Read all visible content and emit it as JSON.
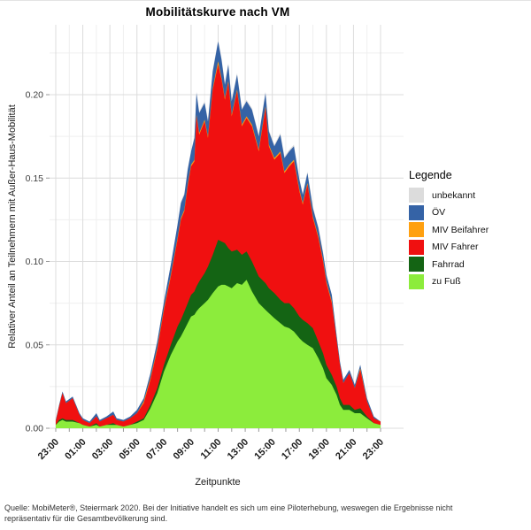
{
  "caption": {
    "text": "Quelle: MobiMeter®, Steiermark 2020. Bei der Initiative handelt es sich um eine Piloterhebung,  weswegen die Ergebnisse nicht repräsentativ für die Gesamtbevölkerung sind."
  },
  "chart_data": {
    "type": "area",
    "stacked": true,
    "title": "Mobilitätskurve nach VM",
    "xlabel": "Zeitpunkte",
    "ylabel": "Relativer Anteil an Teilnehmern mit Außer-Haus-Mobilität",
    "legend_title": "Legende",
    "legend_position": "right",
    "grid": "major+minor",
    "x_unit": "hours since 23:00",
    "x_range": [
      0,
      24
    ],
    "x_tick_hours": [
      0,
      2,
      4,
      6,
      8,
      10,
      12,
      14,
      16,
      18,
      20,
      22,
      24
    ],
    "x_tick_labels": [
      "23:00",
      "01:00",
      "03:00",
      "05:00",
      "07:00",
      "09:00",
      "11:00",
      "13:00",
      "15:00",
      "17:00",
      "19:00",
      "21:00",
      "23:00"
    ],
    "y_ticks": [
      0.0,
      0.05,
      0.1,
      0.15,
      0.2
    ],
    "y_tick_labels": [
      "0.00",
      "0.05",
      "0.10",
      "0.15",
      "0.20"
    ],
    "y_minor_ticks": [
      0.025,
      0.075,
      0.125,
      0.175,
      0.225
    ],
    "ylim": [
      0,
      0.242
    ],
    "x": [
      0,
      0.25,
      0.5,
      0.75,
      1.25,
      1.75,
      2,
      2.5,
      3,
      3.25,
      3.75,
      4.25,
      4.5,
      5,
      5.5,
      6,
      6.5,
      7,
      7.5,
      8,
      8.5,
      9,
      9.25,
      9.5,
      9.75,
      10,
      10.25,
      10.4,
      10.6,
      11,
      11.25,
      11.6,
      12,
      12.25,
      12.5,
      12.75,
      13,
      13.4,
      13.75,
      14.1,
      14.5,
      15,
      15.5,
      15.75,
      16.15,
      16.6,
      16.9,
      17.25,
      17.6,
      18,
      18.25,
      18.6,
      19,
      19.4,
      19.75,
      20,
      20.4,
      20.75,
      21,
      21.25,
      21.7,
      22.1,
      22.5,
      23,
      23.5,
      24
    ],
    "series_order": "bottom to top",
    "series": [
      {
        "name": "zu Fuß",
        "color": "#8CEC3C",
        "values": [
          0.002,
          0.004,
          0.005,
          0.004,
          0.004,
          0.003,
          0.002,
          0.001,
          0.002,
          0.001,
          0.002,
          0.002,
          0.002,
          0.001,
          0.002,
          0.003,
          0.005,
          0.012,
          0.021,
          0.034,
          0.044,
          0.052,
          0.055,
          0.059,
          0.063,
          0.067,
          0.068,
          0.07,
          0.072,
          0.075,
          0.077,
          0.081,
          0.085,
          0.086,
          0.086,
          0.085,
          0.084,
          0.087,
          0.086,
          0.089,
          0.082,
          0.075,
          0.071,
          0.069,
          0.066,
          0.063,
          0.061,
          0.06,
          0.058,
          0.054,
          0.052,
          0.05,
          0.048,
          0.042,
          0.036,
          0.03,
          0.026,
          0.02,
          0.014,
          0.011,
          0.011,
          0.009,
          0.009,
          0.006,
          0.003,
          0.002
        ]
      },
      {
        "name": "Fahrrad",
        "color": "#146414",
        "values": [
          0,
          0.001,
          0.001,
          0.001,
          0.001,
          0,
          0,
          0,
          0.001,
          0,
          0,
          0.001,
          0,
          0,
          0,
          0.001,
          0.001,
          0.002,
          0.003,
          0.004,
          0.006,
          0.009,
          0.01,
          0.011,
          0.012,
          0.013,
          0.014,
          0.015,
          0.016,
          0.018,
          0.02,
          0.023,
          0.028,
          0.026,
          0.025,
          0.023,
          0.022,
          0.02,
          0.018,
          0.017,
          0.018,
          0.016,
          0.016,
          0.015,
          0.015,
          0.014,
          0.014,
          0.015,
          0.014,
          0.013,
          0.013,
          0.013,
          0.012,
          0.01,
          0.009,
          0.008,
          0.006,
          0.005,
          0.004,
          0.003,
          0.003,
          0.002,
          0.003,
          0.001,
          0,
          0
        ]
      },
      {
        "name": "MIV Fahrer",
        "color": "#F01010",
        "values": [
          0.002,
          0.008,
          0.015,
          0.01,
          0.013,
          0.005,
          0.003,
          0.002,
          0.004,
          0.003,
          0.004,
          0.005,
          0.003,
          0.003,
          0.004,
          0.005,
          0.009,
          0.015,
          0.023,
          0.033,
          0.041,
          0.052,
          0.06,
          0.06,
          0.07,
          0.077,
          0.078,
          0.102,
          0.088,
          0.091,
          0.077,
          0.099,
          0.105,
          0.097,
          0.086,
          0.099,
          0.081,
          0.095,
          0.077,
          0.08,
          0.081,
          0.075,
          0.105,
          0.085,
          0.08,
          0.088,
          0.078,
          0.082,
          0.088,
          0.075,
          0.069,
          0.083,
          0.066,
          0.062,
          0.055,
          0.049,
          0.043,
          0.028,
          0.02,
          0.013,
          0.019,
          0.013,
          0.023,
          0.009,
          0.003,
          0.002
        ]
      },
      {
        "name": "MIV Beifahrer",
        "color": "#FFA010",
        "values": [
          0,
          0,
          0,
          0,
          0,
          0,
          0,
          0,
          0,
          0,
          0,
          0,
          0,
          0,
          0,
          0,
          0.001,
          0.001,
          0.001,
          0.001,
          0.001,
          0.001,
          0.001,
          0.001,
          0.001,
          0.001,
          0.001,
          0.001,
          0.001,
          0.001,
          0.001,
          0.001,
          0.002,
          0.001,
          0.001,
          0.001,
          0.001,
          0.001,
          0.001,
          0.001,
          0.001,
          0.001,
          0.001,
          0.001,
          0.001,
          0.001,
          0.001,
          0.001,
          0.001,
          0.001,
          0.001,
          0.001,
          0.001,
          0.001,
          0.001,
          0.001,
          0.001,
          0,
          0,
          0,
          0,
          0,
          0.001,
          0,
          0,
          0
        ]
      },
      {
        "name": "ÖV",
        "color": "#3563A6",
        "values": [
          0.001,
          0.001,
          0.001,
          0.001,
          0.001,
          0.001,
          0.001,
          0.001,
          0.002,
          0.001,
          0.001,
          0.002,
          0.001,
          0.001,
          0.001,
          0.002,
          0.002,
          0.003,
          0.004,
          0.004,
          0.006,
          0.008,
          0.009,
          0.009,
          0.009,
          0.008,
          0.013,
          0.013,
          0.012,
          0.01,
          0.009,
          0.01,
          0.012,
          0.011,
          0.008,
          0.01,
          0.008,
          0.009,
          0.009,
          0.009,
          0.009,
          0.008,
          0.008,
          0.008,
          0.007,
          0.01,
          0.008,
          0.008,
          0.008,
          0.006,
          0.005,
          0.006,
          0.005,
          0.005,
          0.004,
          0.004,
          0.004,
          0.003,
          0.002,
          0.002,
          0.002,
          0.002,
          0.002,
          0.002,
          0.001,
          0
        ]
      },
      {
        "name": "unbekannt",
        "color": "#DCDCDC",
        "values": [
          0,
          0,
          0,
          0,
          0,
          0,
          0,
          0,
          0,
          0,
          0,
          0,
          0,
          0,
          0,
          0,
          0,
          0,
          0,
          0,
          0,
          0,
          0.001,
          0.001,
          0.001,
          0,
          0.001,
          0.001,
          0.001,
          0.001,
          0.001,
          0.001,
          0.001,
          0.001,
          0.001,
          0.001,
          0.001,
          0.001,
          0.001,
          0.001,
          0.001,
          0.001,
          0.001,
          0.001,
          0.001,
          0.001,
          0.001,
          0.001,
          0.001,
          0.001,
          0.001,
          0.001,
          0.001,
          0.001,
          0.001,
          0,
          0,
          0,
          0,
          0,
          0,
          0,
          0,
          0,
          0,
          0
        ]
      }
    ],
    "colors": {
      "zu_fuss": "#8CEC3C",
      "fahrrad": "#146414",
      "miv_fahrer": "#F01010",
      "miv_beifahrer": "#FFA010",
      "oev": "#3563A6",
      "unbekannt": "#DCDCDC",
      "grid_major": "#DCDCDC",
      "grid_minor": "#EFEFEF",
      "tick": "#9A9A9A"
    }
  }
}
